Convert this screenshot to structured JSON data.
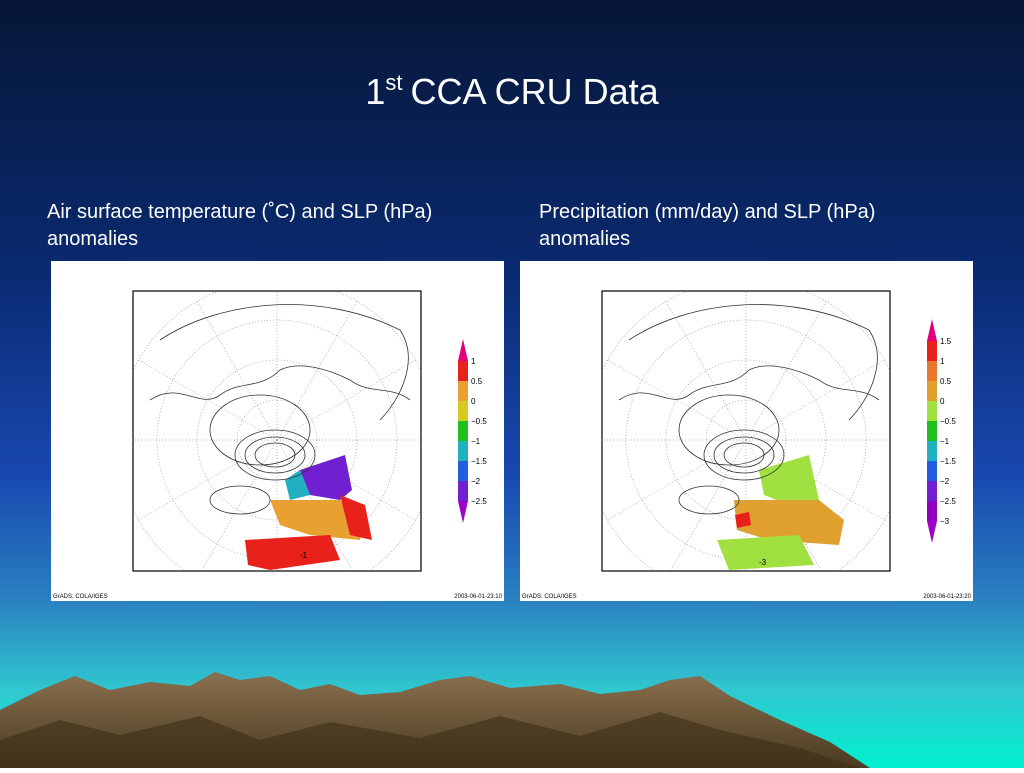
{
  "slide": {
    "title": {
      "main": "1",
      "sup": "st",
      "rest": "CCA CRU Data"
    },
    "panels": [
      {
        "caption": [
          "Air surface temperature (˚C) and SLP (hPa)",
          "anomalies"
        ],
        "legend": {
          "labels": [
            "1",
            "0.5",
            "0",
            "−0.5",
            "−1",
            "−1.5",
            "−2",
            "−2.5"
          ],
          "colors": [
            "#e0007e",
            "#e8211b",
            "#e8a030",
            "#d8c820",
            "#20c020",
            "#20b0c0",
            "#2060e0",
            "#7020d0",
            "#a000c8"
          ]
        },
        "contour_labels": [
          "-1"
        ],
        "footer_left": "GrADS: COLA/IGES",
        "footer_right": "2003-06-01-23:10"
      },
      {
        "caption": [
          "Precipitation (mm/day) and SLP (hPa)",
          "anomalies"
        ],
        "legend": {
          "labels": [
            "1.5",
            "1",
            "0.5",
            "0",
            "−0.5",
            "−1",
            "−1.5",
            "−2",
            "−2.5",
            "−3"
          ],
          "colors": [
            "#e0007e",
            "#e8211b",
            "#e87830",
            "#e0a030",
            "#a0e040",
            "#20c020",
            "#20b0c0",
            "#2060e0",
            "#7020d0",
            "#9000c0",
            "#a000c8"
          ]
        },
        "contour_labels": [
          "-3"
        ],
        "footer_left": "GrADS: COLA/IGES",
        "footer_right": "2003-06-01-23:20"
      }
    ]
  }
}
